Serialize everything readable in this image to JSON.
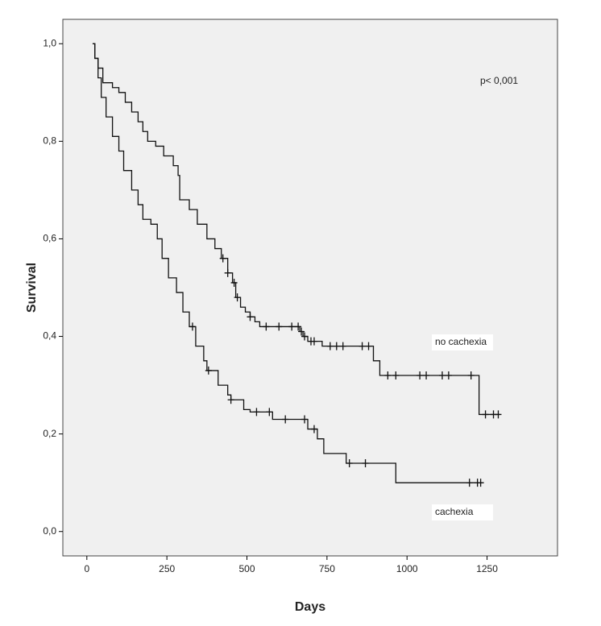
{
  "chart_data": {
    "type": "step",
    "x_label": "Days",
    "y_label": "Survival",
    "annotations": [
      "p< 0,001"
    ],
    "xlim": [
      -75,
      1470
    ],
    "ylim": [
      -0.05,
      1.05
    ],
    "xticks": [
      0,
      250,
      500,
      750,
      1000,
      1250
    ],
    "yticks": [
      {
        "value": 0,
        "label": "0,0"
      },
      {
        "value": 0.2,
        "label": "0,2"
      },
      {
        "value": 0.4,
        "label": "0,4"
      },
      {
        "value": 0.6,
        "label": "0,6"
      },
      {
        "value": 0.8,
        "label": "0,8"
      },
      {
        "value": 1,
        "label": "1,0"
      }
    ],
    "series": [
      {
        "name": "no cachexia",
        "color": "#111111",
        "x": [
          18,
          25,
          35,
          50,
          80,
          100,
          120,
          140,
          160,
          175,
          190,
          215,
          240,
          270,
          285,
          290,
          320,
          345,
          375,
          400,
          420,
          440,
          455,
          465,
          480,
          495,
          510,
          525,
          540,
          665,
          675,
          690,
          735,
          895,
          915,
          1225,
          1290
        ],
        "values": [
          1.0,
          0.97,
          0.95,
          0.92,
          0.91,
          0.9,
          0.88,
          0.86,
          0.84,
          0.82,
          0.8,
          0.79,
          0.77,
          0.75,
          0.73,
          0.68,
          0.66,
          0.63,
          0.6,
          0.58,
          0.56,
          0.53,
          0.51,
          0.48,
          0.46,
          0.45,
          0.44,
          0.43,
          0.42,
          0.41,
          0.4,
          0.39,
          0.38,
          0.35,
          0.32,
          0.24,
          0.24
        ],
        "censored": [
          425,
          440,
          460,
          470,
          510,
          560,
          600,
          640,
          660,
          670,
          680,
          700,
          710,
          760,
          780,
          800,
          860,
          880,
          940,
          965,
          1040,
          1060,
          1110,
          1130,
          1200,
          1245,
          1270,
          1285
        ]
      },
      {
        "name": "cachexia",
        "color": "#111111",
        "x": [
          18,
          25,
          35,
          45,
          60,
          80,
          100,
          115,
          140,
          160,
          175,
          200,
          220,
          235,
          255,
          280,
          300,
          320,
          340,
          365,
          375,
          410,
          440,
          450,
          490,
          510,
          580,
          690,
          720,
          740,
          810,
          965,
          1235
        ],
        "values": [
          1.0,
          0.97,
          0.93,
          0.89,
          0.85,
          0.81,
          0.78,
          0.74,
          0.7,
          0.67,
          0.64,
          0.63,
          0.6,
          0.56,
          0.52,
          0.49,
          0.45,
          0.42,
          0.38,
          0.35,
          0.33,
          0.3,
          0.28,
          0.27,
          0.25,
          0.245,
          0.23,
          0.21,
          0.19,
          0.16,
          0.14,
          0.1,
          0.1
        ],
        "censored": [
          330,
          380,
          450,
          530,
          570,
          620,
          680,
          710,
          820,
          870,
          1195,
          1220,
          1230
        ]
      }
    ]
  }
}
